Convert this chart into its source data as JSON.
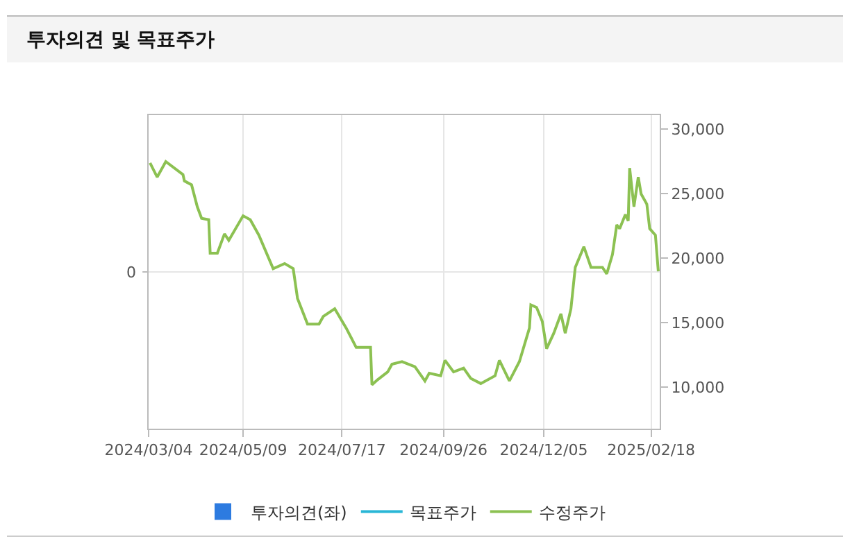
{
  "chart_data": {
    "type": "line",
    "title": "투자의견 및 목표주가",
    "x": [
      "2024-03-05",
      "2024-03-10",
      "2024-03-16",
      "2024-03-28",
      "2024-03-29",
      "2024-04-03",
      "2024-04-07",
      "2024-04-10",
      "2024-04-15",
      "2024-04-16",
      "2024-04-21",
      "2024-04-26",
      "2024-04-29",
      "2024-05-09",
      "2024-05-14",
      "2024-05-20",
      "2024-05-30",
      "2024-06-07",
      "2024-06-13",
      "2024-06-16",
      "2024-06-23",
      "2024-07-01",
      "2024-07-04",
      "2024-07-12",
      "2024-07-20",
      "2024-07-27",
      "2024-08-06",
      "2024-08-07",
      "2024-08-11",
      "2024-08-18",
      "2024-08-21",
      "2024-08-28",
      "2024-09-06",
      "2024-09-13",
      "2024-09-16",
      "2024-09-24",
      "2024-09-27",
      "2024-10-03",
      "2024-10-10",
      "2024-10-15",
      "2024-10-22",
      "2024-11-01",
      "2024-11-04",
      "2024-11-11",
      "2024-11-18",
      "2024-11-25",
      "2024-11-26",
      "2024-11-30",
      "2024-12-04",
      "2024-12-07",
      "2024-12-12",
      "2024-12-17",
      "2024-12-20",
      "2024-12-24",
      "2024-12-27",
      "2025-01-02",
      "2025-01-07",
      "2025-01-15",
      "2025-01-18",
      "2025-01-22",
      "2025-01-25",
      "2025-01-27",
      "2025-01-31",
      "2025-02-02",
      "2025-02-03",
      "2025-02-06",
      "2025-02-09",
      "2025-02-11",
      "2025-02-15",
      "2025-02-17",
      "2025-02-21",
      "2025-02-23"
    ],
    "series": [
      {
        "name": "투자의견(좌)",
        "type": "bar",
        "color": "#2d7be0",
        "values": [
          null,
          null,
          null,
          null,
          null,
          null,
          null,
          null,
          null,
          null,
          null,
          null,
          null,
          null,
          null,
          null,
          null,
          null,
          null,
          null,
          null,
          null,
          null,
          null,
          null,
          null,
          null,
          null,
          null,
          null,
          null,
          null,
          null,
          null,
          null,
          null,
          null,
          null,
          null,
          null,
          null,
          null,
          null,
          null,
          null,
          null,
          null,
          null,
          null,
          null,
          null,
          null,
          null,
          null,
          null,
          null,
          null,
          null,
          null,
          null,
          null,
          null,
          null,
          null,
          null,
          null,
          null,
          null,
          null,
          null,
          null,
          null
        ]
      },
      {
        "name": "목표주가",
        "type": "line",
        "color": "#29b6d6",
        "axis": "y2",
        "values": [
          null,
          null,
          null,
          null,
          null,
          null,
          null,
          null,
          null,
          null,
          null,
          null,
          null,
          null,
          null,
          null,
          null,
          null,
          null,
          null,
          null,
          null,
          null,
          null,
          null,
          null,
          null,
          null,
          null,
          null,
          null,
          null,
          null,
          null,
          null,
          null,
          null,
          null,
          null,
          null,
          null,
          null,
          null,
          null,
          null,
          null,
          null,
          null,
          null,
          null,
          null,
          null,
          null,
          null,
          null,
          null,
          null,
          null,
          null,
          null,
          null,
          null,
          null,
          null,
          null,
          null,
          null,
          null,
          null,
          null,
          null,
          null
        ]
      },
      {
        "name": "수정주가",
        "color": "#8cc152",
        "axis": "y2",
        "values": [
          27400,
          26300,
          27500,
          26500,
          26000,
          25700,
          24000,
          23100,
          23000,
          20400,
          20400,
          21900,
          21400,
          23300,
          23000,
          21800,
          19200,
          19600,
          19200,
          16900,
          14900,
          14900,
          15500,
          16100,
          14600,
          13100,
          13100,
          10200,
          10600,
          11200,
          11800,
          12000,
          11600,
          10500,
          11100,
          10900,
          12100,
          11200,
          11500,
          10700,
          10300,
          10900,
          12100,
          10500,
          12000,
          14600,
          16400,
          16200,
          15100,
          13000,
          14200,
          15700,
          14200,
          16100,
          19300,
          20900,
          19300,
          19300,
          18800,
          20300,
          22600,
          22300,
          23400,
          22900,
          27000,
          24000,
          26300,
          25000,
          24200,
          22300,
          21800,
          19000
        ]
      }
    ],
    "xlim": [
      "2024-03-04",
      "2025-02-24"
    ],
    "xticks": [
      {
        "value": "2024-03-04",
        "label": "2024/03/04"
      },
      {
        "value": "2024-05-09",
        "label": "2024/05/09"
      },
      {
        "value": "2024-07-17",
        "label": "2024/07/17"
      },
      {
        "value": "2024-09-26",
        "label": "2024/09/26"
      },
      {
        "value": "2024-12-05",
        "label": "2024/12/05"
      },
      {
        "value": "2025-02-18",
        "label": "2025/02/18"
      }
    ],
    "annotations": [
      "0"
    ],
    "y2lim": [
      6800,
      31100
    ],
    "y2ticks": [
      {
        "value": 10000,
        "label": "10,000"
      },
      {
        "value": 15000,
        "label": "15,000"
      },
      {
        "value": 20000,
        "label": "20,000"
      },
      {
        "value": 25000,
        "label": "25,000"
      },
      {
        "value": 30000,
        "label": "30,000"
      }
    ],
    "grid": true,
    "legend": "bottom",
    "marker": "none",
    "line_style": "solid"
  }
}
